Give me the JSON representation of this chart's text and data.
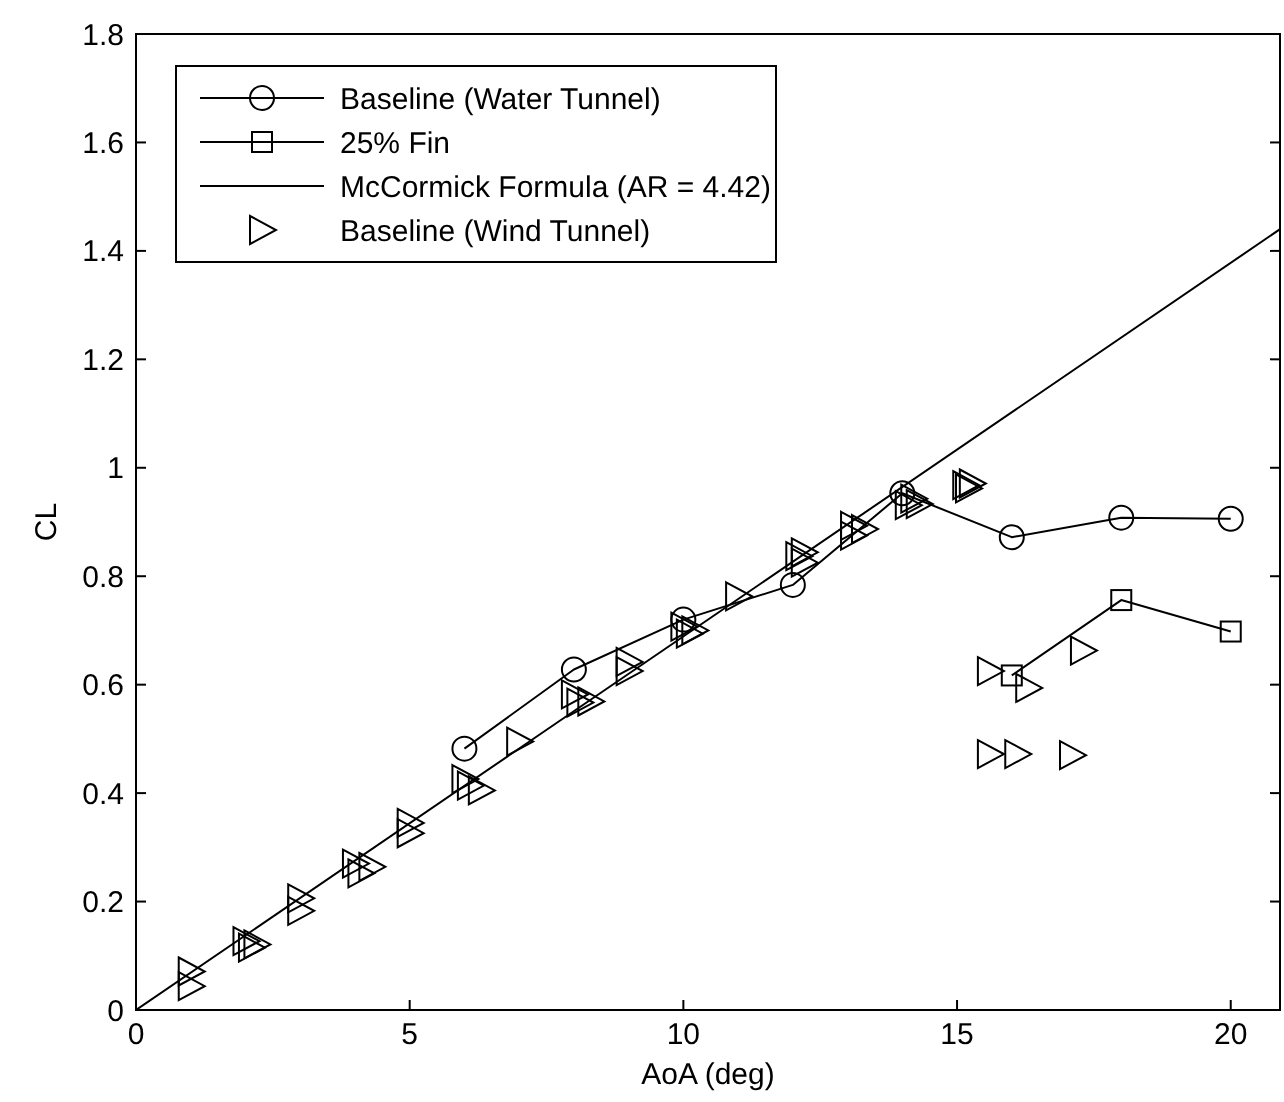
{
  "chart_data": {
    "type": "line",
    "xlabel": "AoA (deg)",
    "ylabel": "CL",
    "xlim": [
      0,
      20.9
    ],
    "ylim": [
      0,
      1.8
    ],
    "xticks": [
      0,
      5,
      10,
      15,
      20
    ],
    "yticks": [
      0,
      0.2,
      0.4,
      0.6,
      0.8,
      1,
      1.2,
      1.4,
      1.6,
      1.8
    ],
    "grid": false,
    "legend": "top left",
    "series": [
      {
        "name": "Baseline (Water Tunnel)",
        "color": "#000000",
        "marker": "circle",
        "line_style": "solid",
        "x": [
          6,
          8,
          10,
          12,
          14,
          16,
          18,
          20
        ],
        "values": [
          0.482,
          0.628,
          0.72,
          0.784,
          0.953,
          0.872,
          0.908,
          0.906
        ]
      },
      {
        "name": "25% Fin",
        "color": "#000000",
        "marker": "square",
        "line_style": "solid",
        "x": [
          16,
          18,
          20
        ],
        "values": [
          0.617,
          0.756,
          0.698
        ]
      },
      {
        "name": "McCormick Formula (AR = 4.42)",
        "color": "#000000",
        "marker": "none",
        "line_style": "solid",
        "x": [
          0,
          20.9
        ],
        "values": [
          0,
          1.44
        ]
      },
      {
        "name": "Baseline (Wind Tunnel)",
        "type": "scatter",
        "color": "#000000",
        "marker": "triangle",
        "x": [
          1,
          1,
          2,
          2.1,
          2.2,
          3,
          3,
          4,
          4.1,
          4.3,
          5,
          5,
          6,
          6.1,
          6.3,
          7,
          8,
          8.1,
          8.3,
          9,
          9,
          10,
          10.1,
          10.2,
          11,
          12.1,
          12.2,
          12.2,
          13.1,
          13.1,
          13.3,
          14.1,
          14.2,
          14.3,
          15.15,
          15.2,
          15.27,
          15.6,
          16.3,
          17.3,
          15.6,
          16.1,
          17.1
        ],
        "values": [
          0.071,
          0.044,
          0.127,
          0.115,
          0.121,
          0.206,
          0.183,
          0.27,
          0.252,
          0.264,
          0.345,
          0.326,
          0.426,
          0.414,
          0.405,
          0.495,
          0.582,
          0.567,
          0.569,
          0.642,
          0.625,
          0.707,
          0.694,
          0.7,
          0.763,
          0.837,
          0.825,
          0.844,
          0.893,
          0.875,
          0.887,
          0.931,
          0.943,
          0.933,
          0.968,
          0.962,
          0.971,
          0.625,
          0.594,
          0.663,
          0.472,
          0.472,
          0.47
        ]
      }
    ]
  }
}
